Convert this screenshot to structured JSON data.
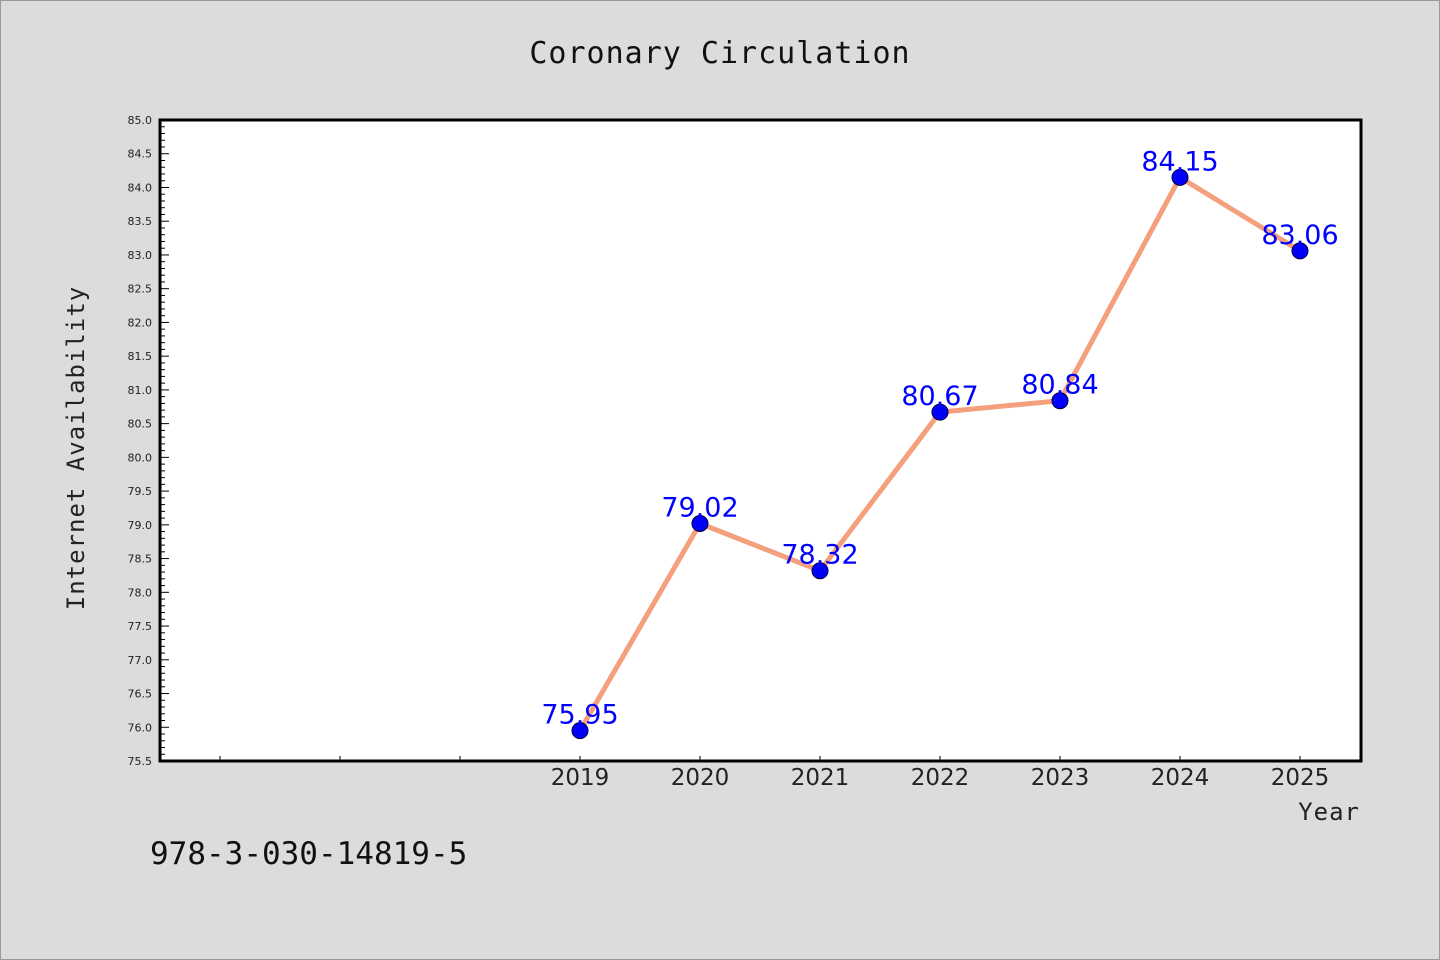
{
  "chart_data": {
    "type": "line",
    "title": "Coronary Circulation",
    "xlabel": "Year",
    "ylabel": "Internet Availability",
    "categories": [
      "2019",
      "2020",
      "2021",
      "2022",
      "2023",
      "2024",
      "2025"
    ],
    "series": [
      {
        "values": [
          75.95,
          79.02,
          78.32,
          80.67,
          80.84,
          84.15,
          83.06
        ],
        "labels": [
          "75.95",
          "79.02",
          "78.32",
          "80.67",
          "80.84",
          "84.15",
          "83.06"
        ]
      }
    ],
    "ylim": [
      75.5,
      85.0
    ],
    "ytick_labels": [
      "75.5",
      "76.0",
      "76.5",
      "77.0",
      "77.5",
      "78.0",
      "78.5",
      "79.0",
      "79.5",
      "80.0",
      "80.5",
      "81.0",
      "81.5",
      "82.0",
      "82.5",
      "83.0",
      "83.5",
      "84.0",
      "84.5",
      "85.0"
    ],
    "grid": false,
    "legend": "none",
    "colors": {
      "line": "#f4a07c",
      "marker": "#0000ff",
      "data_label": "#0000ff",
      "plot_background": "#ffffff",
      "figure_background": "#dcdcdc"
    }
  },
  "footer": {
    "text": "978-3-030-14819-5"
  }
}
